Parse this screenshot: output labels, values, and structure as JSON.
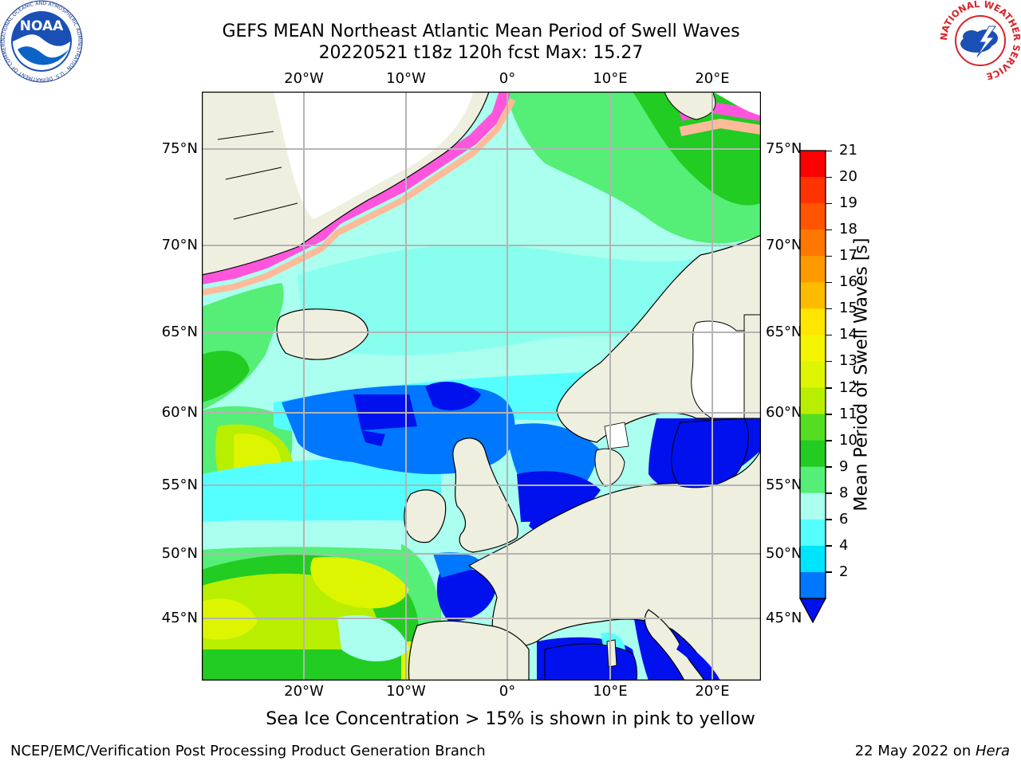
{
  "title_line1": "GEFS MEAN Northeast Atlantic Mean Period of Swell Waves",
  "title_line2": "20220521 t18z 120h fcst   Max: 15.27",
  "logos": {
    "noaa_text": "NOAA",
    "noaa_ring": "NATIONAL OCEANIC AND ATMOSPHERIC ADMINISTRATION · U.S. DEPARTMENT OF COMMERCE",
    "nws_ring": "NATIONAL WEATHER SERVICE"
  },
  "axes": {
    "lon_labels": [
      "20°W",
      "10°W",
      "0°",
      "10°E",
      "20°E"
    ],
    "lat_labels": [
      "75°N",
      "70°N",
      "65°N",
      "60°N",
      "55°N",
      "50°N",
      "45°N"
    ]
  },
  "colorbar": {
    "label": "Mean Period of Swell Waves [s]",
    "ticks": [
      "21",
      "20",
      "19",
      "18",
      "17",
      "16",
      "15",
      "14",
      "13",
      "12",
      "11",
      "10",
      "9",
      "8",
      "6",
      "4",
      "2"
    ],
    "colors": [
      "#ff0000",
      "#ff3300",
      "#ff5500",
      "#ff7700",
      "#ff9900",
      "#ffbb00",
      "#ffe600",
      "#f5f500",
      "#ddf500",
      "#b8ee00",
      "#55dd22",
      "#22cc22",
      "#55ee77",
      "#aaffee",
      "#55ffff",
      "#00e5ff",
      "#0077ff",
      "#0011ee"
    ]
  },
  "ice_note": "Sea Ice Concentration > 15% is shown in pink to yellow",
  "footer_left": "NCEP/EMC/Verification Post Processing Product Generation Branch",
  "footer_date": "22 May 2022 on ",
  "footer_machine": "Hera"
}
